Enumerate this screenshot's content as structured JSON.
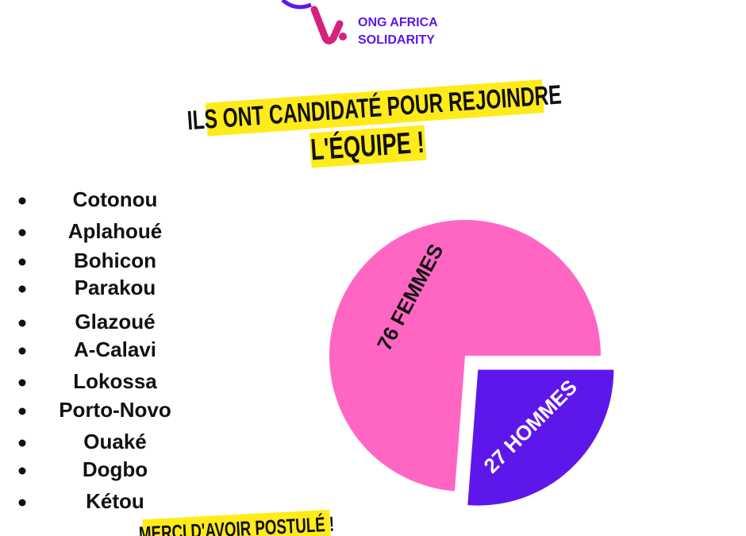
{
  "header": {
    "org_line1": "ONG AFRICA",
    "org_line2": "SOLIDARITY",
    "title_line1": "ILS ONT CANDIDATÉ POUR REJOINDRE",
    "title_line2": "L'ÉQUIPE !"
  },
  "cities": [
    "Cotonou",
    "Aplahoué",
    "Bohicon",
    "Parakou",
    "Glazoué",
    "A-Calavi",
    "Lokossa",
    "Porto-Novo",
    "Ouaké",
    "Dogbo",
    "Kétou"
  ],
  "footer": "MERCI D'AVOIR POSTULÉ !",
  "chart_data": {
    "type": "pie",
    "values": [
      76,
      27
    ],
    "value_labels": [
      "76 FEMMES",
      "27 HOMMES"
    ],
    "colors": [
      "#ff66c4",
      "#5e17eb"
    ]
  }
}
